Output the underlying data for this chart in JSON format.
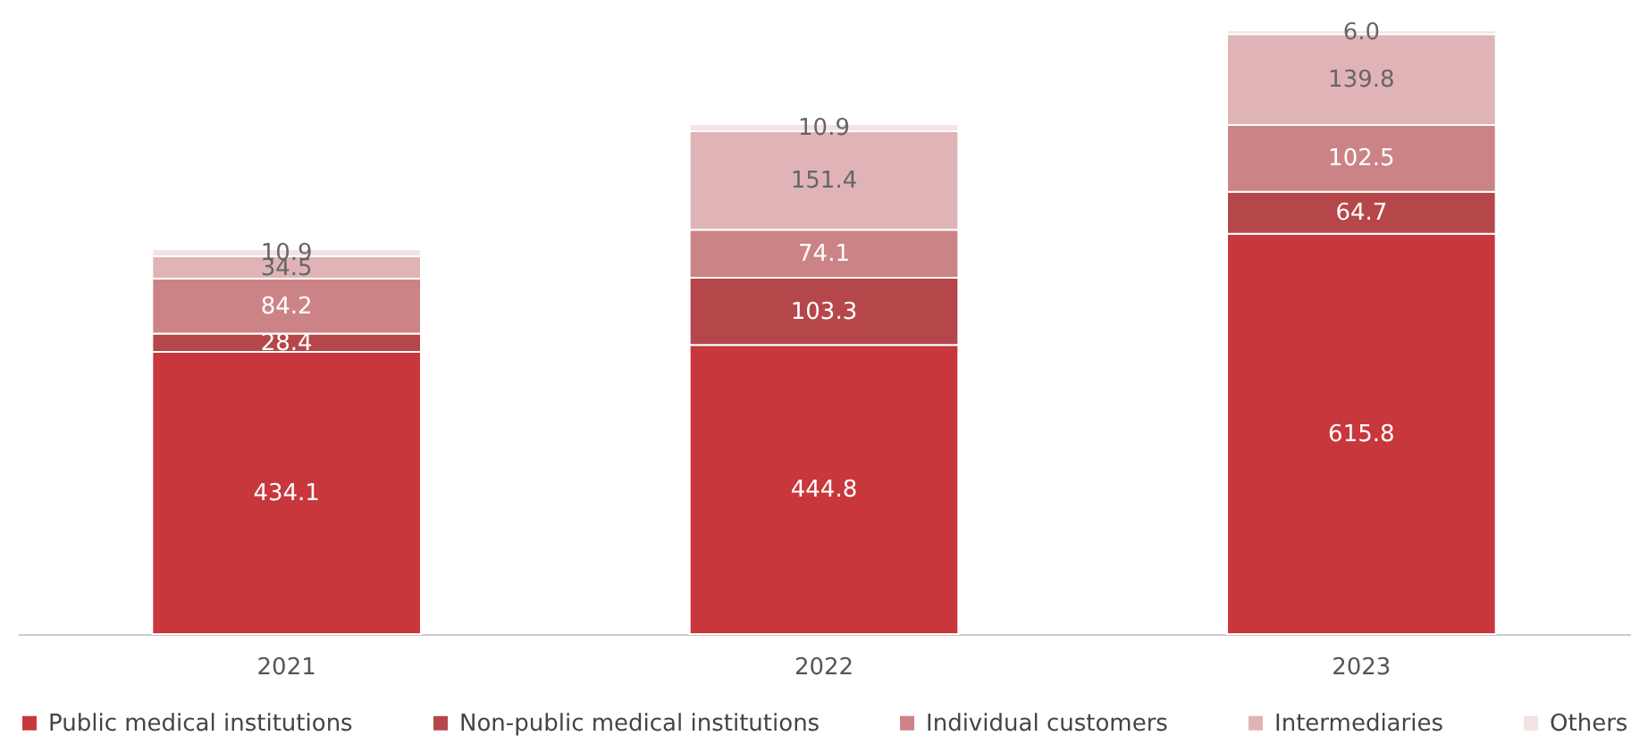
{
  "chart_data": {
    "type": "bar",
    "stacked": true,
    "tick_labels": "x",
    "categories": [
      "2021",
      "2022",
      "2023"
    ],
    "series": [
      {
        "name": "Public medical institutions",
        "color": "#c8373b",
        "values": [
          434.1,
          444.8,
          615.8
        ],
        "value_labels": [
          "434.1",
          "444.8",
          "615.8"
        ]
      },
      {
        "name": "Non-public medical institutions",
        "color": "#b5474b",
        "values": [
          28.4,
          103.3,
          64.7
        ],
        "value_labels": [
          "28.4",
          "103.3",
          "64.7"
        ]
      },
      {
        "name": "Individual customers",
        "color": "#cc8385",
        "values": [
          84.2,
          74.1,
          102.5
        ],
        "value_labels": [
          "84.2",
          "74.1",
          "102.5"
        ]
      },
      {
        "name": "Intermediaries",
        "color": "#e0b4b6",
        "values": [
          34.5,
          151.4,
          139.8
        ],
        "value_labels": [
          "34.5",
          "151.4",
          "139.8"
        ]
      },
      {
        "name": "Others",
        "color": "#f3e3e3",
        "values": [
          10.9,
          10.9,
          6.0
        ],
        "value_labels": [
          "10.9",
          "10.9",
          "6.0"
        ]
      }
    ],
    "legend": "bottom"
  }
}
